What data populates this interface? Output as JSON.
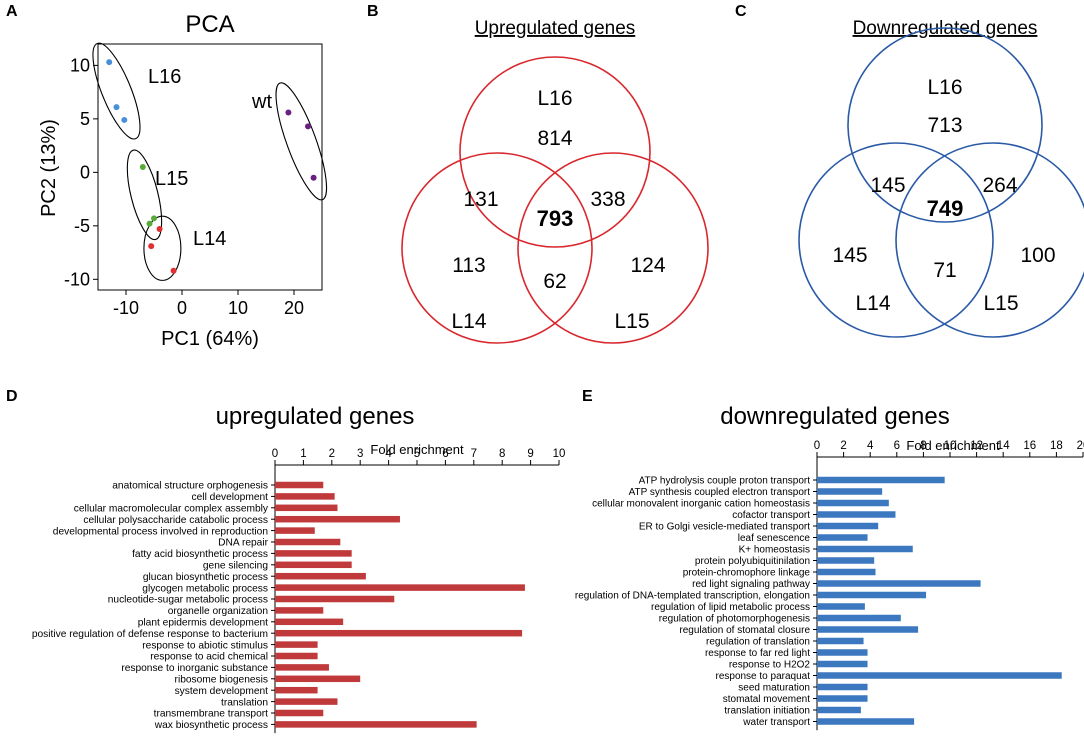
{
  "panels": {
    "a": "A",
    "b": "B",
    "c": "C",
    "d": "D",
    "e": "E"
  },
  "chart_data": [
    {
      "type": "scatter",
      "panel": "A",
      "title": "PCA",
      "xlabel": "PC1 (64%)",
      "ylabel": "PC2 (13%)",
      "xlim": [
        -15,
        25
      ],
      "ylim": [
        -11,
        12
      ],
      "xticks": [
        "-10",
        "0",
        "10",
        "20"
      ],
      "yticks": [
        "10",
        "5",
        "0",
        "-5",
        "-10"
      ],
      "groups": [
        {
          "name": "L16",
          "color": "#4a90d6",
          "points": [
            [
              -13,
              10.3
            ],
            [
              -11.7,
              6.1
            ],
            [
              -10.3,
              4.9
            ]
          ],
          "ellipse": {
            "cx": -11.7,
            "cy": 7.6,
            "rx": 2.6,
            "ry": 4.8,
            "rotate": -22
          }
        },
        {
          "name": "L15",
          "color": "#5aaa3a",
          "points": [
            [
              -7,
              0.5
            ],
            [
              -5.8,
              -4.8
            ],
            [
              -5,
              -4.3
            ]
          ],
          "ellipse": {
            "cx": -6.7,
            "cy": -2.1,
            "rx": 2.4,
            "ry": 4.3,
            "rotate": -14
          }
        },
        {
          "name": "L14",
          "color": "#e03030",
          "points": [
            [
              -4,
              -5.3
            ],
            [
              -5.5,
              -6.9
            ],
            [
              -1.5,
              -9.2
            ]
          ],
          "ellipse": {
            "cx": -3.5,
            "cy": -7.1,
            "rx": 3.3,
            "ry": 3.0,
            "rotate": 0
          }
        },
        {
          "name": "wt",
          "color": "#6a2080",
          "points": [
            [
              19,
              5.6
            ],
            [
              22.5,
              4.3
            ],
            [
              23.5,
              -0.5
            ]
          ],
          "ellipse": {
            "cx": 21.3,
            "cy": 2.9,
            "rx": 2.6,
            "ry": 5.8,
            "rotate": -20
          }
        }
      ]
    },
    {
      "type": "venn",
      "panel": "B",
      "title": "Upregulated genes",
      "color": "#d8282e",
      "sets": [
        "L16",
        "L14",
        "L15"
      ],
      "regions": {
        "only_L16": "814",
        "L16_L14": "131",
        "all": "793",
        "L16_L15": "338",
        "only_L14": "113",
        "L14_L15": "62",
        "only_L15": "124"
      }
    },
    {
      "type": "venn",
      "panel": "C",
      "title": "Downregulated genes",
      "color": "#2a5aa6",
      "sets": [
        "L16",
        "L14",
        "L15"
      ],
      "regions": {
        "only_L16": "713",
        "L16_L14": "145",
        "all": "749",
        "L16_L15": "264",
        "only_L14": "145",
        "L14_L15": "71",
        "only_L15": "100"
      }
    },
    {
      "type": "bar",
      "orientation": "horizontal",
      "panel": "D",
      "title": "upregulated genes",
      "xlabel": "Fold enrichment",
      "xlim": [
        0,
        10
      ],
      "xticks": [
        "0",
        "1",
        "2",
        "3",
        "4",
        "5",
        "6",
        "7",
        "8",
        "9",
        "10"
      ],
      "color": "#c0393b",
      "categories": [
        "anatomical structure orphogenesis",
        "cell development",
        "cellular macromolecular complex assembly",
        "cellular polysaccharide catabolic process",
        "developmental process involved in reproduction",
        "DNA repair",
        "fatty acid biosynthetic process",
        "gene silencing",
        "glucan biosynthetic process",
        "glycogen metabolic process",
        "nucleotide-sugar metabolic process",
        "organelle organization",
        "plant epidermis development",
        "positive regulation of defense response to bacterium",
        "response to abiotic stimulus",
        "response to acid chemical",
        "response to inorganic substance",
        "ribosome biogenesis",
        "system development",
        "translation",
        "transmembrane transport",
        "wax biosynthetic process"
      ],
      "values": [
        1.7,
        2.1,
        2.2,
        4.4,
        1.4,
        2.3,
        2.7,
        2.7,
        3.2,
        8.8,
        4.2,
        1.7,
        2.4,
        8.7,
        1.5,
        1.5,
        1.9,
        3.0,
        1.5,
        2.2,
        1.7,
        7.1
      ]
    },
    {
      "type": "bar",
      "orientation": "horizontal",
      "panel": "E",
      "title": "downregulated genes",
      "xlabel": "Fold enrichment",
      "xlim": [
        0,
        20
      ],
      "xticks": [
        "0",
        "2",
        "4",
        "6",
        "8",
        "10",
        "12",
        "14",
        "16",
        "18",
        "20"
      ],
      "color": "#3b78c0",
      "categories": [
        "ATP hydrolysis couple proton transport",
        "ATP synthesis coupled electron transport",
        "cellular monovalent  inorganic cation homeostasis",
        "cofactor transport",
        "ER to Golgi vesicle-mediated transport",
        "leaf senescence",
        "K+ homeostasis",
        "protein polyubiquitinilation",
        "protein-chromophore linkage",
        "red light signaling pathway",
        "regulation of DNA-templated transcription, elongation",
        "regulation of lipid metabolic process",
        "regulation of photomorphogenesis",
        "regulation of stomatal closure",
        "regulation of translation",
        "response to far red light",
        "response to H2O2",
        "response to paraquat",
        "seed maturation",
        "stomatal movement",
        "translation initiation",
        "water transport"
      ],
      "values": [
        9.6,
        4.9,
        5.4,
        5.9,
        4.6,
        3.8,
        7.2,
        4.3,
        4.4,
        12.3,
        8.2,
        3.6,
        6.3,
        7.6,
        3.5,
        3.8,
        3.8,
        18.4,
        3.8,
        3.8,
        3.3,
        7.3
      ]
    }
  ]
}
